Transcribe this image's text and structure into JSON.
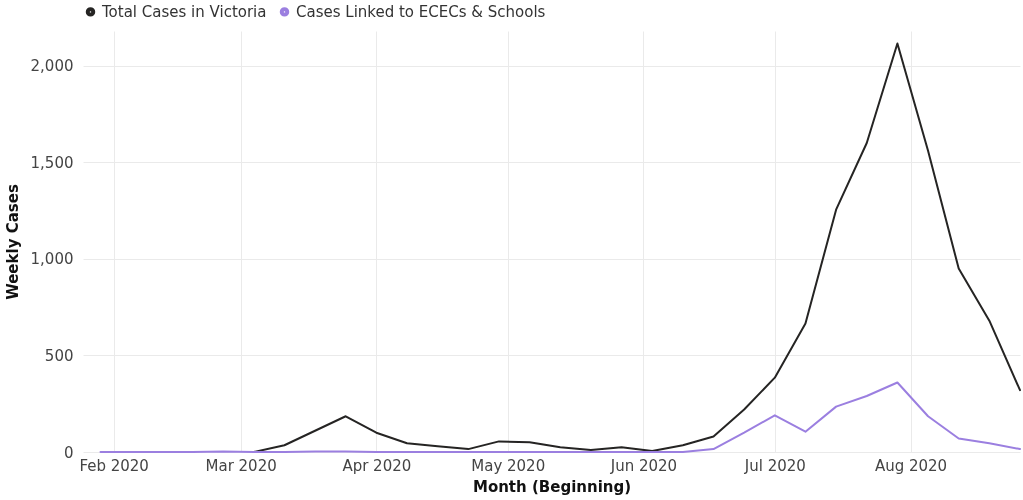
{
  "chart_data": {
    "type": "line",
    "xlabel": "Month (Beginning)",
    "ylabel": "Weekly Cases",
    "x": [
      "2020-01-29",
      "2020-02-05",
      "2020-02-12",
      "2020-02-19",
      "2020-02-26",
      "2020-03-04",
      "2020-03-11",
      "2020-03-18",
      "2020-03-25",
      "2020-04-01",
      "2020-04-08",
      "2020-04-15",
      "2020-04-22",
      "2020-04-29",
      "2020-05-06",
      "2020-05-13",
      "2020-05-20",
      "2020-05-27",
      "2020-06-03",
      "2020-06-10",
      "2020-06-17",
      "2020-06-24",
      "2020-07-01",
      "2020-07-08",
      "2020-07-15",
      "2020-07-22",
      "2020-07-29",
      "2020-08-05",
      "2020-08-12",
      "2020-08-19",
      "2020-08-26"
    ],
    "series": [
      {
        "name": "Total Cases in Victoria",
        "color": "#252423",
        "values": [
          null,
          null,
          null,
          null,
          null,
          0,
          35,
          110,
          185,
          100,
          45,
          30,
          15,
          55,
          50,
          25,
          10,
          25,
          5,
          35,
          80,
          220,
          385,
          665,
          1255,
          1600,
          2115,
          1560,
          950,
          680,
          320
        ]
      },
      {
        "name": "Cases Linked to ECECs & Schools",
        "color": "#9b7fe0",
        "values": [
          0,
          0,
          0,
          0,
          3,
          0,
          0,
          2,
          3,
          0,
          0,
          0,
          0,
          0,
          0,
          0,
          0,
          0,
          0,
          0,
          15,
          100,
          190,
          105,
          235,
          290,
          360,
          185,
          70,
          45,
          15
        ]
      }
    ],
    "xlim": [
      "2020-01-25",
      "2020-08-26"
    ],
    "xticks": [
      {
        "value": "2020-02-01",
        "label": "Feb 2020"
      },
      {
        "value": "2020-03-01",
        "label": "Mar 2020"
      },
      {
        "value": "2020-04-01",
        "label": "Apr 2020"
      },
      {
        "value": "2020-05-01",
        "label": "May 2020"
      },
      {
        "value": "2020-06-01",
        "label": "Jun 2020"
      },
      {
        "value": "2020-07-01",
        "label": "Jul 2020"
      },
      {
        "value": "2020-08-01",
        "label": "Aug 2020"
      }
    ],
    "ylim": [
      0,
      2180
    ],
    "yticks": [
      0,
      {
        "value": 500,
        "label": "500"
      },
      {
        "value": 1000,
        "label": "1,000"
      },
      {
        "value": 1500,
        "label": "1,500"
      },
      {
        "value": 2000,
        "label": "2,000"
      }
    ],
    "grid": true,
    "legend": "top left",
    "marker": "none",
    "line_style": "solid"
  }
}
